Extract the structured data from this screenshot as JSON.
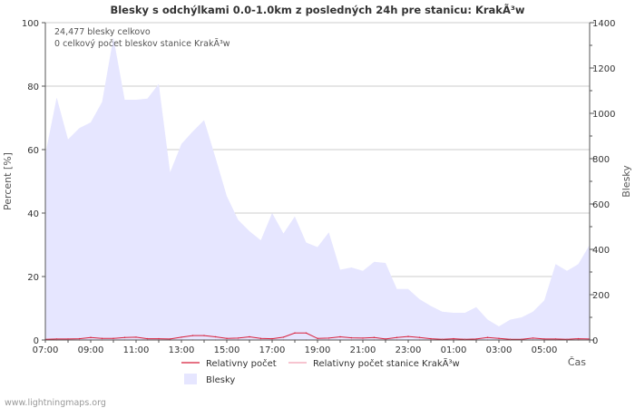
{
  "chart_data": {
    "type": "area",
    "title": "Blesky s odchýlkami 0.0-1.0km z posledných 24h pre stanicu: KrakÃ³w",
    "ylabel_left": "Percent   [%]",
    "ylabel_right": "Blesky",
    "xlabel": "Čas",
    "ylim_left": [
      0,
      100
    ],
    "ylim_right": [
      0,
      1400
    ],
    "y_ticks_left": [
      "0",
      "20",
      "40",
      "60",
      "80",
      "100"
    ],
    "y_ticks_right": [
      "0",
      "200",
      "400",
      "600",
      "800",
      "1000",
      "1200",
      "1400"
    ],
    "x_tick_labels": [
      "07:00",
      "09:00",
      "11:00",
      "13:00",
      "15:00",
      "17:00",
      "19:00",
      "21:00",
      "23:00",
      "01:00",
      "03:00",
      "05:00"
    ],
    "annotations": [
      "24,477 blesky celkovo",
      "0 celkový počet bleskov stanice KrakÃ³w"
    ],
    "legend": [
      "Relativny počet",
      "Relativny počet stanice KrakÃ³w",
      "Blesky"
    ],
    "series": [
      {
        "name": "Blesky",
        "axis": "right",
        "color": "#e6e6ff",
        "values": [
          820,
          1070,
          885,
          935,
          960,
          1050,
          1335,
          1060,
          1060,
          1065,
          1130,
          740,
          865,
          920,
          970,
          805,
          635,
          530,
          480,
          440,
          560,
          470,
          545,
          430,
          410,
          475,
          310,
          320,
          305,
          345,
          340,
          225,
          225,
          180,
          150,
          125,
          120,
          120,
          145,
          90,
          60,
          90,
          100,
          125,
          175,
          335,
          305,
          335,
          420
        ]
      },
      {
        "name": "Relativny počet",
        "axis": "left",
        "color": "#d81e3a",
        "values": [
          0.2,
          0.3,
          0.3,
          0.4,
          0.8,
          0.5,
          0.5,
          0.8,
          0.9,
          0.4,
          0.4,
          0.3,
          0.9,
          1.4,
          1.4,
          1.0,
          0.5,
          0.6,
          1.0,
          0.5,
          0.4,
          0.9,
          2.2,
          2.2,
          0.5,
          0.6,
          1.0,
          0.7,
          0.6,
          0.8,
          0.3,
          0.8,
          1.1,
          0.8,
          0.4,
          0.2,
          0.4,
          0.2,
          0.3,
          0.8,
          0.5,
          0.2,
          0.2,
          0.6,
          0.3,
          0.3,
          0.2,
          0.4,
          0.3
        ]
      },
      {
        "name": "Relativny počet stanice KrakÃ³w",
        "axis": "left",
        "color": "#f2a0b4",
        "values": [
          0,
          0,
          0,
          0,
          0,
          0,
          0,
          0,
          0,
          0,
          0,
          0,
          0,
          0,
          0,
          0,
          0,
          0,
          0,
          0,
          0,
          0,
          0,
          0,
          0,
          0,
          0,
          0,
          0,
          0,
          0,
          0,
          0,
          0,
          0,
          0,
          0,
          0,
          0,
          0,
          0,
          0,
          0,
          0,
          0,
          0,
          0,
          0,
          0
        ]
      }
    ]
  },
  "footer": "www.lightningmaps.org"
}
